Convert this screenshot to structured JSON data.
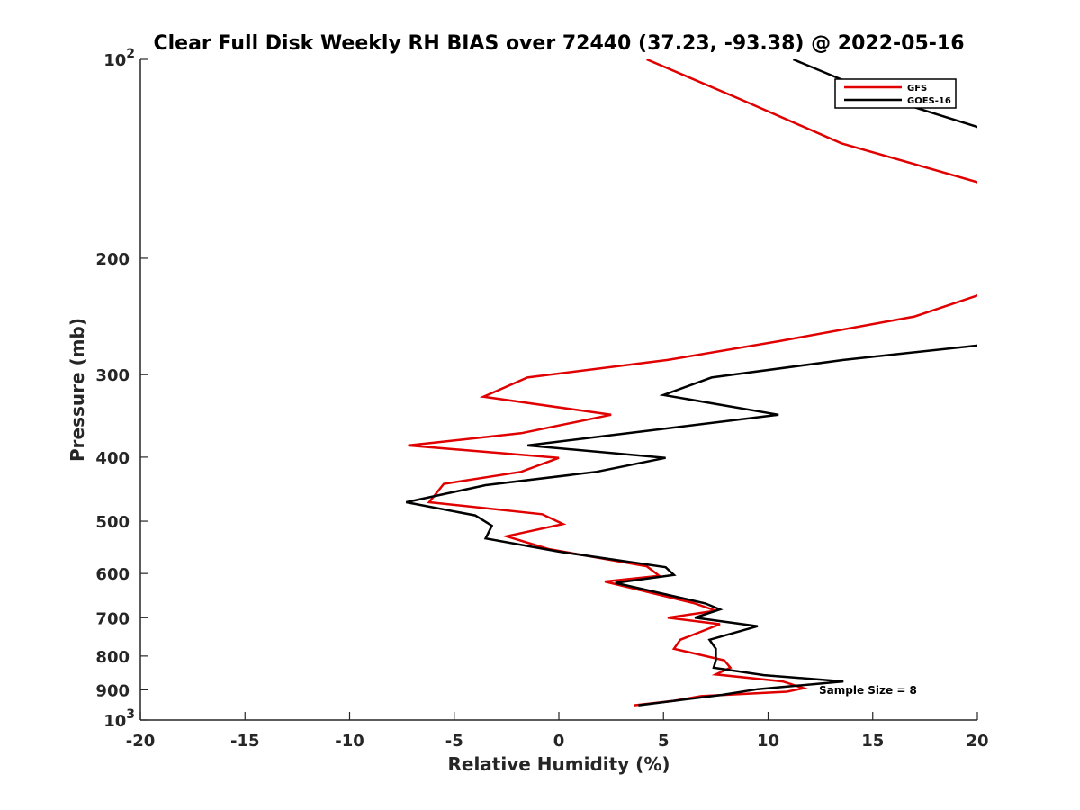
{
  "chart_data": {
    "type": "line",
    "title": "Clear Full Disk Weekly RH BIAS over 72440 (37.23, -93.38) @ 2022-05-16",
    "xlabel": "Relative Humidity (%)",
    "ylabel": "Pressure (mb)",
    "xlim": [
      -20,
      20
    ],
    "ylim": [
      100,
      1000
    ],
    "y_scale": "log",
    "y_reversed": true,
    "x_ticks": [
      "-20",
      "-15",
      "-10",
      "-5",
      "0",
      "5",
      "10",
      "15",
      "20"
    ],
    "y_ticks": [
      {
        "value": 100,
        "base": "10",
        "exp": "2"
      },
      {
        "value": 200,
        "label": "200"
      },
      {
        "value": 300,
        "label": "300"
      },
      {
        "value": 400,
        "label": "400"
      },
      {
        "value": 500,
        "label": "500"
      },
      {
        "value": 600,
        "label": "600"
      },
      {
        "value": 700,
        "label": "700"
      },
      {
        "value": 800,
        "label": "800"
      },
      {
        "value": 900,
        "label": "900"
      },
      {
        "value": 1000,
        "base": "10",
        "exp": "3"
      }
    ],
    "legend_position": "top-right",
    "grid": false,
    "annotation": "Sample Size = 8",
    "series": [
      {
        "name": "GFS",
        "color": "#e00000",
        "points": [
          [
            4.2,
            100
          ],
          [
            8.7,
            115
          ],
          [
            13.5,
            134
          ],
          [
            20.5,
            155
          ],
          [
            20.5,
            225
          ],
          [
            17.0,
            245
          ],
          [
            10.5,
            267
          ],
          [
            5.2,
            285
          ],
          [
            -1.5,
            303
          ],
          [
            -3.6,
            324
          ],
          [
            2.5,
            345
          ],
          [
            -1.8,
            368
          ],
          [
            -7.2,
            384
          ],
          [
            0.0,
            401
          ],
          [
            -1.8,
            421
          ],
          [
            -5.5,
            439
          ],
          [
            -6.2,
            468
          ],
          [
            -0.8,
            488
          ],
          [
            0.2,
            505
          ],
          [
            -2.5,
            527
          ],
          [
            -0.5,
            551
          ],
          [
            4.2,
            585
          ],
          [
            4.8,
            605
          ],
          [
            2.2,
            617
          ],
          [
            6.5,
            666
          ],
          [
            7.5,
            683
          ],
          [
            5.2,
            700
          ],
          [
            7.7,
            716
          ],
          [
            5.8,
            756
          ],
          [
            5.5,
            780
          ],
          [
            7.9,
            812
          ],
          [
            8.2,
            833
          ],
          [
            7.5,
            853
          ],
          [
            10.7,
            874
          ],
          [
            11.7,
            895
          ],
          [
            10.9,
            906
          ],
          [
            6.8,
            920
          ],
          [
            5.5,
            935
          ],
          [
            3.6,
            950
          ]
        ]
      },
      {
        "name": "GOES-16",
        "color": "#000000",
        "points": [
          [
            11.2,
            100
          ],
          [
            15.8,
            115
          ],
          [
            20.5,
            128
          ],
          [
            20.5,
            270
          ],
          [
            13.6,
            285
          ],
          [
            7.3,
            303
          ],
          [
            5.0,
            322
          ],
          [
            10.5,
            345
          ],
          [
            4.8,
            363
          ],
          [
            -1.5,
            384
          ],
          [
            5.1,
            401
          ],
          [
            1.8,
            421
          ],
          [
            -3.5,
            441
          ],
          [
            -7.3,
            468
          ],
          [
            -4.0,
            490
          ],
          [
            -3.2,
            508
          ],
          [
            -3.5,
            531
          ],
          [
            0.0,
            556
          ],
          [
            5.1,
            587
          ],
          [
            5.5,
            603
          ],
          [
            2.7,
            620
          ],
          [
            7.0,
            666
          ],
          [
            7.7,
            680
          ],
          [
            6.5,
            700
          ],
          [
            9.5,
            721
          ],
          [
            7.2,
            756
          ],
          [
            7.5,
            780
          ],
          [
            7.5,
            812
          ],
          [
            7.4,
            833
          ],
          [
            9.8,
            855
          ],
          [
            13.6,
            874
          ],
          [
            9.5,
            898
          ],
          [
            7.8,
            916
          ],
          [
            3.8,
            950
          ]
        ]
      }
    ]
  }
}
